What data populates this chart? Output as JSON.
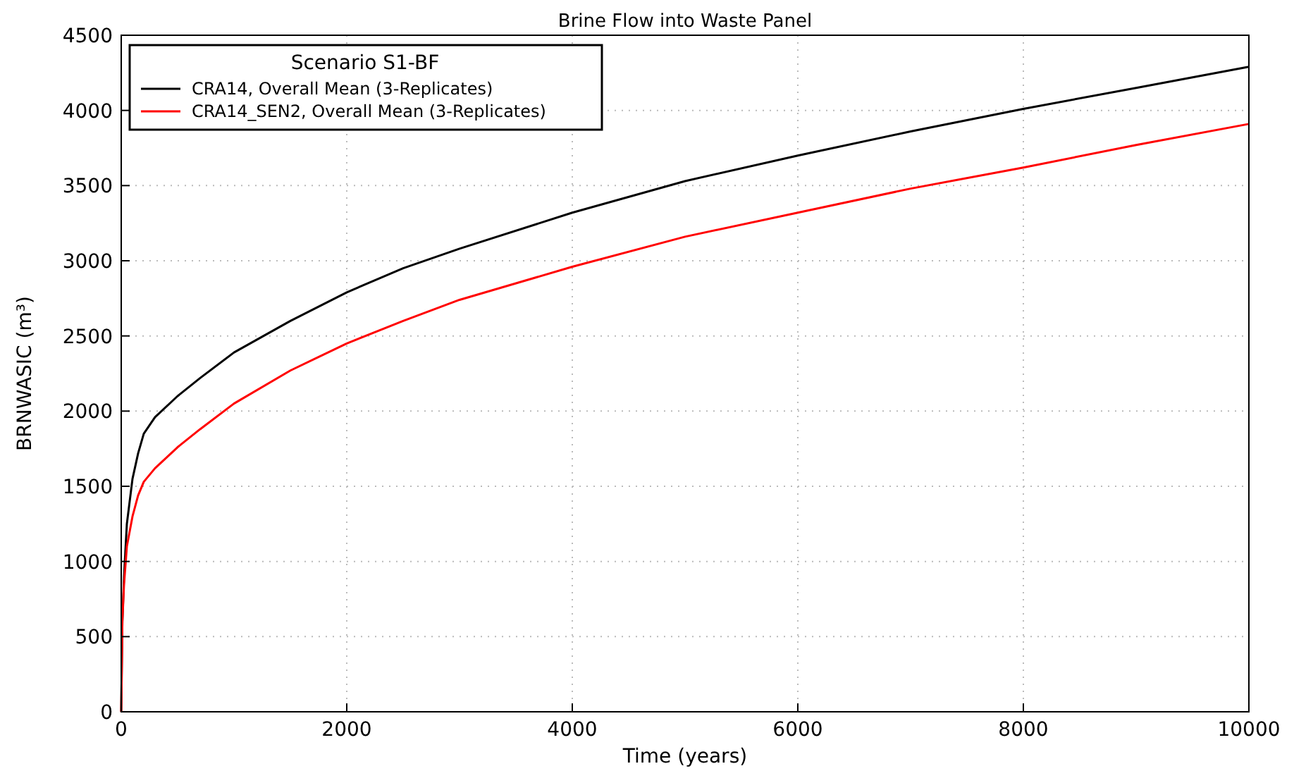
{
  "chart_data": {
    "type": "line",
    "title": "Brine Flow into Waste Panel",
    "xlabel": "Time (years)",
    "ylabel": "BRNWASIC (m³)",
    "legend_title": "Scenario S1-BF",
    "legend": "top left",
    "grid": true,
    "line_style": "solid",
    "x": [
      0,
      10,
      25,
      50,
      100,
      150,
      200,
      300,
      500,
      700,
      1000,
      1500,
      2000,
      2500,
      3000,
      4000,
      5000,
      6000,
      7000,
      8000,
      9000,
      10000
    ],
    "xlim": [
      0,
      10000
    ],
    "xticks": [
      0,
      2000,
      4000,
      6000,
      8000,
      10000
    ],
    "ylim": [
      0,
      4500
    ],
    "yticks": [
      0,
      500,
      1000,
      1500,
      2000,
      2500,
      3000,
      3500,
      4000,
      4500
    ],
    "series": [
      {
        "name": "CRA14, Overall Mean (3-Replicates)",
        "color": "#000000",
        "values": [
          0,
          600,
          900,
          1250,
          1550,
          1720,
          1850,
          1960,
          2100,
          2220,
          2390,
          2600,
          2790,
          2950,
          3080,
          3320,
          3530,
          3700,
          3860,
          4010,
          4150,
          4290
        ]
      },
      {
        "name": "CRA14_SEN2, Overall Mean (3-Replicates)",
        "color": "#ff0000",
        "values": [
          0,
          600,
          850,
          1100,
          1300,
          1440,
          1530,
          1620,
          1760,
          1880,
          2050,
          2270,
          2450,
          2600,
          2740,
          2960,
          3160,
          3320,
          3480,
          3620,
          3770,
          3910
        ]
      }
    ]
  }
}
